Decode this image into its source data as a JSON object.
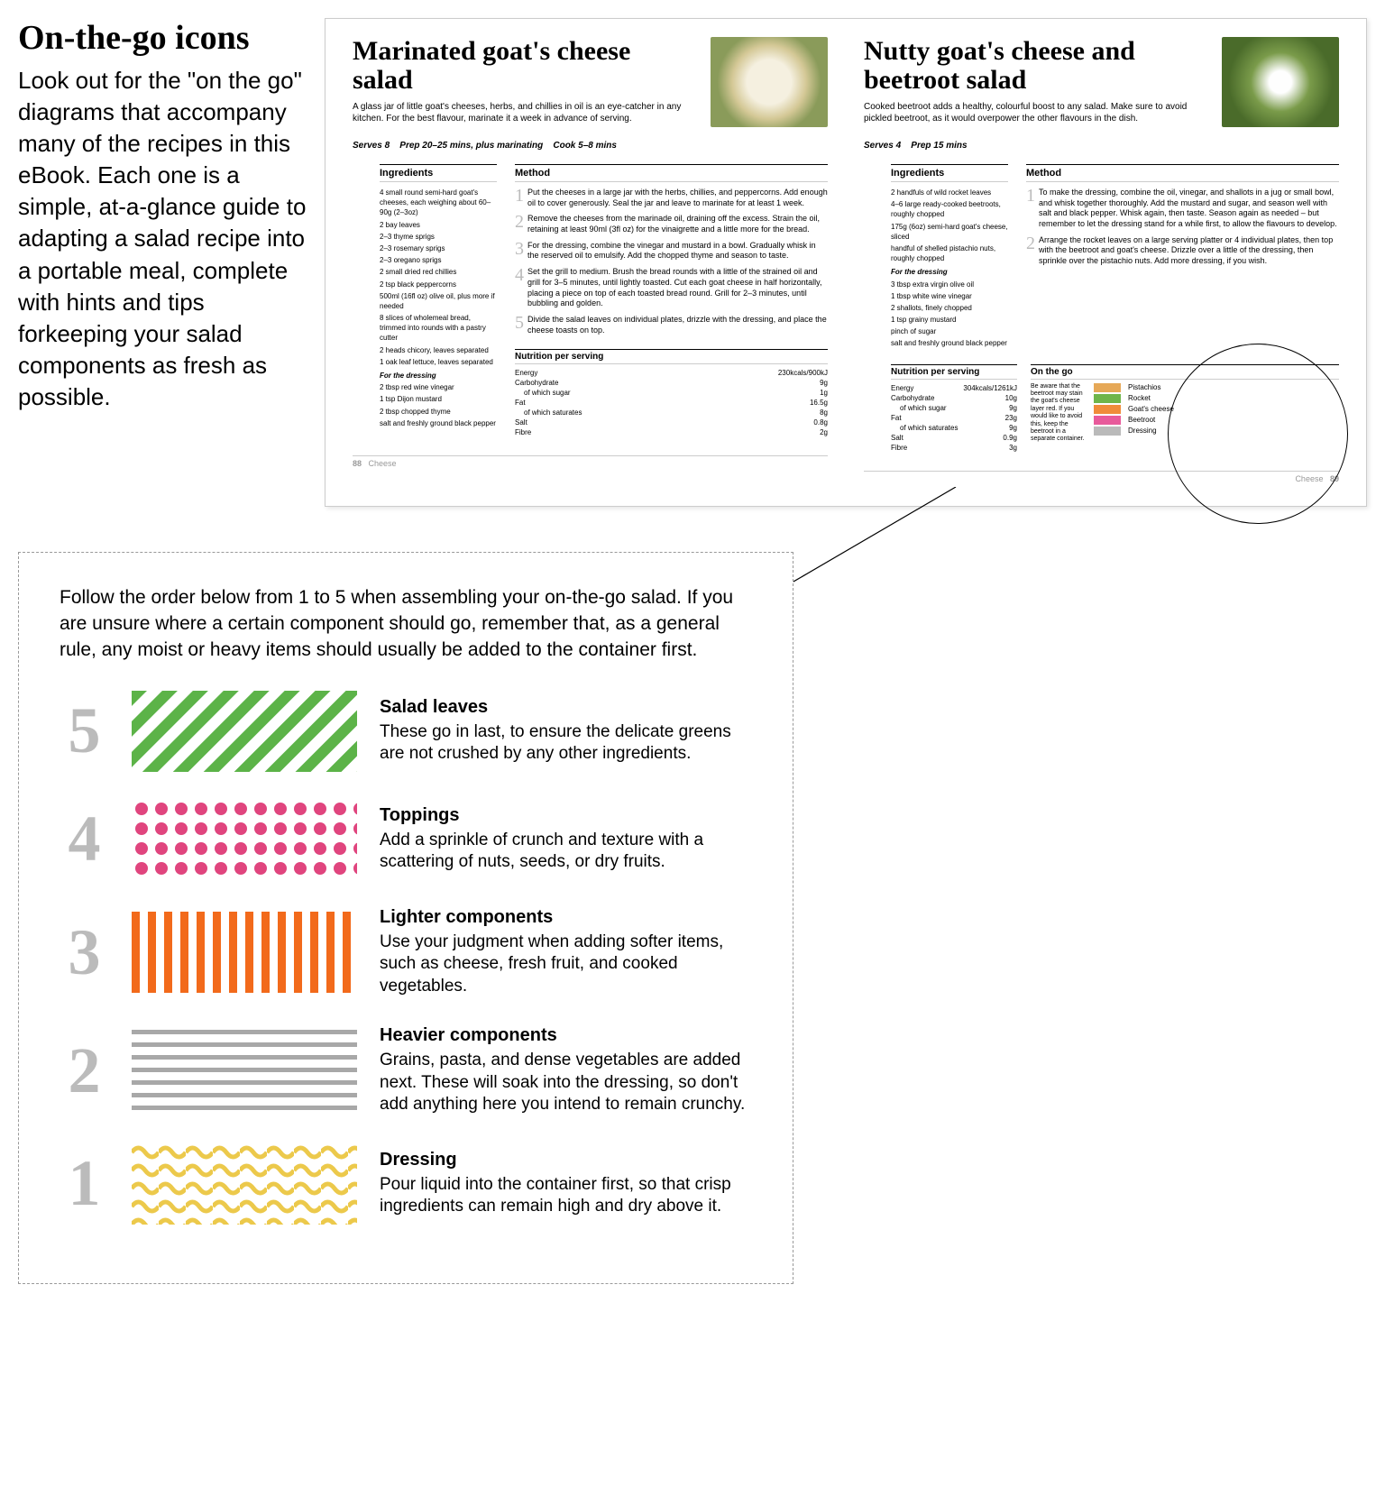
{
  "intro": {
    "heading": "On-the-go icons",
    "body": "Look out for the \"on the go\" diagrams that accompany many of the recipes in this eBook. Each one is a simple, at-a-glance guide to adapting a salad recipe into a portable meal, complete with hints and tips forkeeping your salad components as fresh as possible."
  },
  "spread": {
    "left": {
      "title": "Marinated goat's cheese salad",
      "desc": "A glass jar of little goat's cheeses, herbs, and chillies in oil is an eye-catcher in any kitchen. For the best flavour, marinate it a week in advance of serving.",
      "meta_serves": "Serves 8",
      "meta_prep": "Prep 20–25 mins, plus marinating",
      "meta_cook": "Cook 5–8 mins",
      "ingredients_head": "Ingredients",
      "method_head": "Method",
      "ingredients": [
        "4 small round semi-hard goat's cheeses, each weighing about 60–90g (2–3oz)",
        "2 bay leaves",
        "2–3 thyme sprigs",
        "2–3 rosemary sprigs",
        "2–3 oregano sprigs",
        "2 small dried red chillies",
        "2 tsp black peppercorns",
        "500ml (16fl oz) olive oil, plus more if needed",
        "8 slices of wholemeal bread, trimmed into rounds with a pastry cutter",
        "2 heads chicory, leaves separated",
        "1 oak leaf lettuce, leaves separated"
      ],
      "dressing_head": "For the dressing",
      "dressing": [
        "2 tbsp red wine vinegar",
        "1 tsp Dijon mustard",
        "2 tbsp chopped thyme",
        "salt and freshly ground black pepper"
      ],
      "steps": [
        "Put the cheeses in a large jar with the herbs, chillies, and peppercorns. Add enough oil to cover generously. Seal the jar and leave to marinate for at least 1 week.",
        "Remove the cheeses from the marinade oil, draining off the excess. Strain the oil, retaining at least 90ml (3fl oz) for the vinaigrette and a little more for the bread.",
        "For the dressing, combine the vinegar and mustard in a bowl. Gradually whisk in the reserved oil to emulsify. Add the chopped thyme and season to taste.",
        "Set the grill to medium. Brush the bread rounds with a little of the strained oil and grill for 3–5 minutes, until lightly toasted. Cut each goat cheese in half horizontally, placing a piece on top of each toasted bread round. Grill for 2–3 minutes, until bubbling and golden.",
        "Divide the salad leaves on individual plates, drizzle with the dressing, and place the cheese toasts on top."
      ],
      "nutrition_head": "Nutrition per serving",
      "nutrition": [
        {
          "k": "Energy",
          "v": "230kcals/900kJ"
        },
        {
          "k": "Carbohydrate",
          "v": "9g"
        },
        {
          "k": "of which sugar",
          "v": "1g",
          "indent": true
        },
        {
          "k": "Fat",
          "v": "16.5g"
        },
        {
          "k": "of which saturates",
          "v": "8g",
          "indent": true
        },
        {
          "k": "Salt",
          "v": "0.8g"
        },
        {
          "k": "Fibre",
          "v": "2g"
        }
      ],
      "page_num": "88",
      "page_label": "Cheese"
    },
    "right": {
      "title": "Nutty goat's cheese and beetroot salad",
      "desc": "Cooked beetroot adds a healthy, colourful boost to any salad. Make sure to avoid pickled beetroot, as it would overpower the other flavours in the dish.",
      "meta_serves": "Serves 4",
      "meta_prep": "Prep 15 mins",
      "ingredients_head": "Ingredients",
      "method_head": "Method",
      "ingredients": [
        "2 handfuls of wild rocket leaves",
        "4–6 large ready-cooked beetroots, roughly chopped",
        "175g (6oz) semi-hard goat's cheese, sliced",
        "handful of shelled pistachio nuts, roughly chopped"
      ],
      "dressing_head": "For the dressing",
      "dressing": [
        "3 tbsp extra virgin olive oil",
        "1 tbsp white wine vinegar",
        "2 shallots, finely chopped",
        "1 tsp grainy mustard",
        "pinch of sugar",
        "salt and freshly ground black pepper"
      ],
      "steps": [
        "To make the dressing, combine the oil, vinegar, and shallots in a jug or small bowl, and whisk together thoroughly. Add the mustard and sugar, and season well with salt and black pepper. Whisk again, then taste. Season again as needed – but remember to let the dressing stand for a while first, to allow the flavours to develop.",
        "Arrange the rocket leaves on a large serving platter or 4 individual plates, then top with the beetroot and goat's cheese. Drizzle over a little of the dressing, then sprinkle over the pistachio nuts. Add more dressing, if you wish."
      ],
      "nutrition_head": "Nutrition per serving",
      "nutrition": [
        {
          "k": "Energy",
          "v": "304kcals/1261kJ"
        },
        {
          "k": "Carbohydrate",
          "v": "10g"
        },
        {
          "k": "of which sugar",
          "v": "9g",
          "indent": true
        },
        {
          "k": "Fat",
          "v": "23g"
        },
        {
          "k": "of which saturates",
          "v": "9g",
          "indent": true
        },
        {
          "k": "Salt",
          "v": "0.9g"
        },
        {
          "k": "Fibre",
          "v": "3g"
        }
      ],
      "onthego_head": "On the go",
      "onthego_tip": "Be aware that the beetroot may stain the goat's cheese layer red. If you would like to avoid this, keep the beetroot in a separate container.",
      "onthego_items": [
        {
          "label": "Pistachios",
          "color": "#e6a857"
        },
        {
          "label": "Rocket",
          "color": "#6fb54a"
        },
        {
          "label": "Goat's cheese",
          "color": "#f08c3a"
        },
        {
          "label": "Beetroot",
          "color": "#e85a9b"
        },
        {
          "label": "Dressing",
          "color": "#bababa"
        }
      ],
      "page_num": "89",
      "page_label": "Cheese"
    }
  },
  "guide": {
    "intro": "Follow the order below from 1 to 5 when assembling your on-the-go salad. If you are unsure where a certain component should go, remember that, as a general rule, any moist or heavy items should usually be added to the container first.",
    "layers": [
      {
        "num": "5",
        "title": "Salad leaves",
        "desc": "These go in last, to ensure the delicate greens are not crushed by any other ingredients.",
        "pattern": "diagonal",
        "color": "#5cb348"
      },
      {
        "num": "4",
        "title": "Toppings",
        "desc": "Add a sprinkle of crunch and texture with a scattering of nuts, seeds, or dry fruits.",
        "pattern": "dots",
        "color": "#e0457e"
      },
      {
        "num": "3",
        "title": "Lighter components",
        "desc": "Use your judgment when adding softer items, such as cheese, fresh fruit, and cooked vegetables.",
        "pattern": "vbars",
        "color": "#f26a1b"
      },
      {
        "num": "2",
        "title": "Heavier components",
        "desc": "Grains, pasta, and dense vegetables are added next. These will soak into the dressing, so don't add anything here you intend to remain crunchy.",
        "pattern": "hlines",
        "color": "#a8a8a8"
      },
      {
        "num": "1",
        "title": "Dressing",
        "desc": "Pour liquid into the container first, so that crisp ingredients can remain high and dry above it.",
        "pattern": "waves",
        "color": "#ecc94b"
      }
    ]
  }
}
